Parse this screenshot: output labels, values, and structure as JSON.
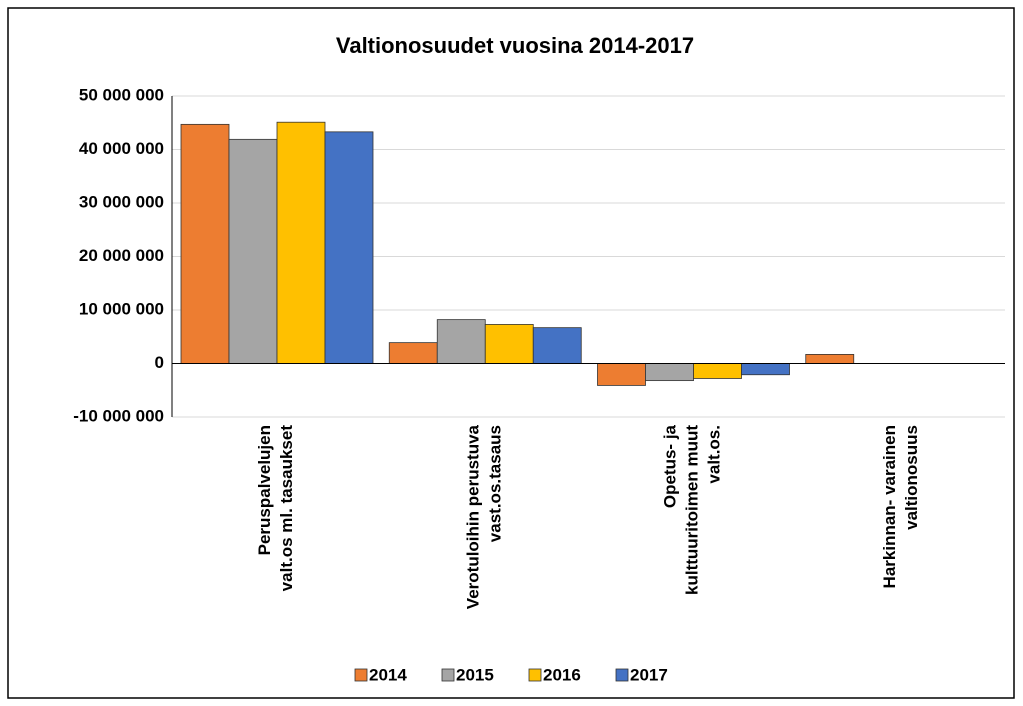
{
  "chart_data": {
    "type": "bar",
    "title": "Valtionosuudet vuosina 2014-2017",
    "categories": [
      [
        "Peruspalvelujen",
        "valt.os ml. tasaukset"
      ],
      [
        "Verotuloihin perustuva",
        "vast.os.tasaus"
      ],
      [
        "Opetus- ja",
        "kulttuuritoimen muut",
        "valt.os."
      ],
      [
        "Harkinnan- varainen",
        "valtionosuus"
      ]
    ],
    "series": [
      {
        "name": "2014",
        "color": "#ed7d31",
        "values": [
          44700000,
          3900000,
          -4100000,
          1700000
        ]
      },
      {
        "name": "2015",
        "color": "#a5a5a5",
        "values": [
          41900000,
          8200000,
          -3200000,
          0
        ]
      },
      {
        "name": "2016",
        "color": "#ffc000",
        "values": [
          45100000,
          7300000,
          -2800000,
          0
        ]
      },
      {
        "name": "2017",
        "color": "#4472c4",
        "values": [
          43300000,
          6700000,
          -2100000,
          0
        ]
      }
    ],
    "ylim": [
      -10000000,
      50000000
    ],
    "yticks": [
      {
        "value": -10000000,
        "label": "-10 000 000"
      },
      0,
      {
        "value": 10000000,
        "label": "10 000 000"
      },
      {
        "value": 20000000,
        "label": "20 000 000"
      },
      {
        "value": 30000000,
        "label": "30 000 000"
      },
      {
        "value": 40000000,
        "label": "40 000 000"
      },
      {
        "value": 50000000,
        "label": "50 000 000"
      }
    ],
    "grid": true,
    "legend": "bottom"
  }
}
